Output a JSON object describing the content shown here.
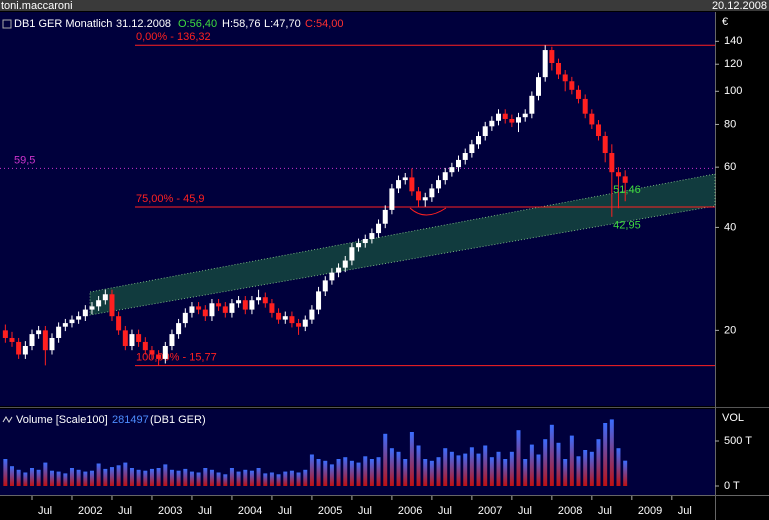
{
  "window": {
    "user": "toni.maccaroni",
    "date": "20.12.2008"
  },
  "chart_data": [
    {
      "type": "candlestick",
      "header": {
        "symbol": "DB1 GER Monatlich",
        "date": "31.12.2008",
        "open": "O:56,40",
        "high": "H:58,76",
        "low": "L:47,70",
        "close": "C:54,00"
      },
      "unit": "€",
      "log_scale": true,
      "up_color": "#ffffff",
      "down_color": "#ff2020",
      "x": [
        2001.167,
        2001.25,
        2001.333,
        2001.417,
        2001.5,
        2001.583,
        2001.667,
        2001.75,
        2001.833,
        2001.917,
        2002,
        2002.083,
        2002.167,
        2002.25,
        2002.333,
        2002.417,
        2002.5,
        2002.583,
        2002.667,
        2002.75,
        2002.833,
        2002.917,
        2003,
        2003.083,
        2003.167,
        2003.25,
        2003.333,
        2003.417,
        2003.5,
        2003.583,
        2003.667,
        2003.75,
        2003.833,
        2003.917,
        2004,
        2004.083,
        2004.167,
        2004.25,
        2004.333,
        2004.417,
        2004.5,
        2004.583,
        2004.667,
        2004.75,
        2004.833,
        2004.917,
        2005,
        2005.083,
        2005.167,
        2005.25,
        2005.333,
        2005.417,
        2005.5,
        2005.583,
        2005.667,
        2005.75,
        2005.833,
        2005.917,
        2006,
        2006.083,
        2006.167,
        2006.25,
        2006.333,
        2006.417,
        2006.5,
        2006.583,
        2006.667,
        2006.75,
        2006.833,
        2006.917,
        2007,
        2007.083,
        2007.167,
        2007.25,
        2007.333,
        2007.417,
        2007.5,
        2007.583,
        2007.667,
        2007.75,
        2007.833,
        2007.917,
        2008,
        2008.083,
        2008.167,
        2008.25,
        2008.333,
        2008.417,
        2008.5,
        2008.583,
        2008.667,
        2008.75,
        2008.833,
        2008.917
      ],
      "open": [
        20,
        19,
        18.5,
        17,
        18,
        19.5,
        20,
        17.5,
        19,
        20.5,
        21,
        21.5,
        22,
        23,
        23.5,
        24.5,
        25.5,
        22,
        20,
        18,
        19.5,
        18.5,
        17.5,
        17,
        16.5,
        18,
        19.5,
        21,
        22.5,
        23.5,
        23,
        22,
        24,
        23.5,
        22.5,
        24,
        24.5,
        23,
        24.5,
        25,
        24,
        22.5,
        21.5,
        22,
        21,
        20.5,
        21.5,
        23,
        26,
        28,
        29.5,
        30.5,
        32,
        35,
        36,
        37,
        38.5,
        41,
        45,
        52,
        55,
        56,
        51,
        48,
        49,
        52,
        55,
        58,
        60,
        63,
        66,
        70,
        74,
        79,
        82,
        86,
        83,
        81,
        84,
        86,
        97,
        110,
        132,
        121,
        112,
        107,
        101,
        95,
        86,
        80,
        74,
        66,
        58,
        56.4
      ],
      "high": [
        20.8,
        19.8,
        19,
        18.6,
        20.1,
        20.6,
        20.6,
        19.6,
        21.1,
        21.6,
        22.1,
        22.7,
        23.7,
        24.2,
        25.2,
        26.3,
        26.3,
        22.7,
        20.6,
        20.1,
        20.1,
        19.1,
        18,
        17.5,
        18.5,
        20.1,
        21.6,
        23.2,
        24.2,
        24.2,
        23.7,
        24.7,
        24.7,
        24.2,
        24.7,
        25.2,
        25.2,
        25.2,
        26.3,
        25.8,
        24.7,
        23.2,
        22.7,
        22.7,
        21.6,
        22.1,
        23.7,
        26.8,
        28.8,
        30.4,
        31.4,
        33,
        36,
        37.1,
        38.1,
        39.7,
        42.2,
        46.4,
        53.6,
        56.7,
        57.7,
        59.5,
        52.5,
        50.5,
        53.6,
        56.7,
        59.7,
        61.8,
        64.9,
        68,
        72.1,
        76.2,
        81.4,
        84.5,
        88.6,
        88.6,
        85.5,
        86.5,
        88.6,
        99.9,
        113.3,
        136.32,
        135,
        124.6,
        115.4,
        110.2,
        104,
        97.9,
        88.6,
        82.4,
        76.2,
        70,
        60,
        58.76
      ],
      "low": [
        18.4,
        17.9,
        16.5,
        16.5,
        17.5,
        18.9,
        15.8,
        17,
        18.4,
        19.9,
        20.4,
        20.9,
        21.3,
        22.3,
        22.8,
        23.8,
        21.3,
        19.4,
        17.5,
        17.5,
        17.9,
        17,
        16.5,
        15.77,
        16,
        17.5,
        18.9,
        20.4,
        21.8,
        22.3,
        21.3,
        21.3,
        22.8,
        21.8,
        21.8,
        23.3,
        22.3,
        22.3,
        23.8,
        23.3,
        21.8,
        20.9,
        20.9,
        20.4,
        19.4,
        19.9,
        20.9,
        22.3,
        25.2,
        27.2,
        28.6,
        29.6,
        31,
        34,
        34.9,
        35.9,
        37.3,
        39.8,
        43.7,
        50.4,
        53.4,
        49.5,
        45.9,
        46,
        47.5,
        50.4,
        53.4,
        56.3,
        58.2,
        61.1,
        64,
        67.9,
        71.8,
        76.6,
        79.5,
        80.5,
        78.6,
        76,
        81.5,
        83.4,
        94.1,
        106.7,
        115,
        108.6,
        100,
        98,
        92.2,
        83.4,
        77.6,
        71.8,
        62,
        42.95,
        45.5,
        47.7
      ],
      "close": [
        19,
        18.5,
        17,
        18,
        19.5,
        20,
        17.5,
        19,
        20.5,
        21,
        21.5,
        22,
        23,
        23.5,
        24.5,
        25.5,
        22,
        20,
        18,
        19.5,
        18.5,
        17.5,
        17,
        16.5,
        18,
        19.5,
        21,
        22.5,
        23.5,
        23,
        22,
        24,
        23.5,
        22.5,
        24,
        24.5,
        23,
        24.5,
        25,
        24,
        22.5,
        21.5,
        22,
        21,
        20.5,
        21.5,
        23,
        26,
        28,
        29.5,
        30.5,
        32,
        35,
        36,
        37,
        38.5,
        41,
        45,
        52,
        55,
        56,
        51,
        48,
        49,
        52,
        55,
        58,
        60,
        63,
        66,
        70,
        74,
        79,
        82,
        86,
        83,
        81,
        84,
        86,
        97,
        110,
        132,
        121,
        112,
        107,
        101,
        95,
        86,
        80,
        74,
        66,
        58,
        56.4,
        54
      ],
      "xlim": [
        2001.1,
        2010.04
      ],
      "xticks": [
        {
          "value": 2001.5,
          "label": "Jul"
        },
        2002,
        {
          "value": 2002.5,
          "label": "Jul"
        },
        2003,
        {
          "value": 2003.5,
          "label": "Jul"
        },
        2004,
        {
          "value": 2004.5,
          "label": "Jul"
        },
        2005,
        {
          "value": 2005.5,
          "label": "Jul"
        },
        2006,
        {
          "value": 2006.5,
          "label": "Jul"
        },
        2007,
        {
          "value": 2007.5,
          "label": "Jul"
        },
        2008,
        {
          "value": 2008.5,
          "label": "Jul"
        },
        2009,
        {
          "value": 2009.5,
          "label": "Jul"
        }
      ],
      "ylim": [
        12.1,
        163.8
      ],
      "yticks": [
        20,
        40,
        60,
        80,
        100,
        120,
        140
      ],
      "levels": [
        {
          "value": 136.32,
          "label": "0,00% - 136,32",
          "color": "#ff2020",
          "style": "solid"
        },
        {
          "value": 45.9,
          "label": "75,00% - 45,9",
          "color": "#ff2020",
          "style": "solid"
        },
        {
          "value": 15.77,
          "label": "100,00% - 15,77",
          "color": "#ff2020",
          "style": "solid"
        },
        {
          "value": 59.5,
          "label": "59,5",
          "color": "#cc33cc",
          "style": "dotted"
        }
      ],
      "annotations": [
        {
          "value": 51.46,
          "label": "51,46"
        },
        {
          "value": 42.95,
          "label": "42,95"
        }
      ]
    },
    {
      "type": "bar",
      "title": "Volume [Scale100]",
      "subtitle": "(DB1 GER)",
      "axis_label": "VOL",
      "color_top": "#3a6dff",
      "color_bottom": "#c01010",
      "values": [
        300000,
        220000,
        180000,
        150000,
        200000,
        180000,
        260000,
        170000,
        160000,
        140000,
        200000,
        180000,
        160000,
        170000,
        250000,
        190000,
        210000,
        230000,
        260000,
        200000,
        180000,
        170000,
        190000,
        200000,
        240000,
        180000,
        170000,
        190000,
        160000,
        150000,
        200000,
        180000,
        150000,
        130000,
        200000,
        160000,
        180000,
        170000,
        200000,
        140000,
        150000,
        130000,
        160000,
        170000,
        150000,
        180000,
        350000,
        300000,
        280000,
        240000,
        300000,
        320000,
        280000,
        260000,
        330000,
        300000,
        320000,
        580000,
        420000,
        380000,
        300000,
        600000,
        450000,
        300000,
        280000,
        320000,
        420000,
        380000,
        340000,
        360000,
        430000,
        360000,
        450000,
        320000,
        380000,
        300000,
        380000,
        620000,
        300000,
        460000,
        350000,
        520000,
        680000,
        480000,
        300000,
        560000,
        330000,
        400000,
        380000,
        520000,
        700000,
        740000,
        420000,
        281497
      ],
      "ylim": [
        -100000,
        844444
      ],
      "yticks": [
        {
          "value": 0,
          "label": "0 T"
        },
        {
          "value": 500000,
          "label": "500 T"
        }
      ]
    }
  ]
}
